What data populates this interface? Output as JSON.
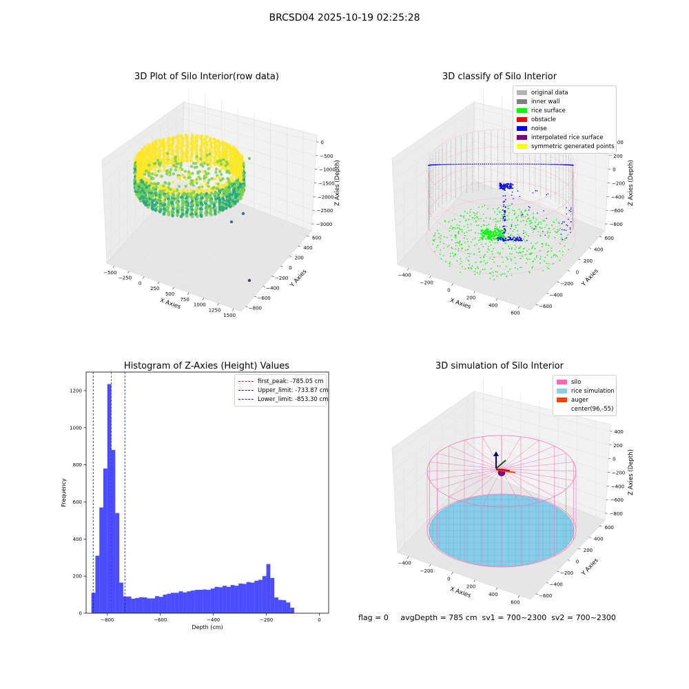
{
  "figure": {
    "title": "BRCSD04 2025-10-19 02:25:28",
    "status_text": "flag = 0     avgDepth = 785 cm  sv1 = 700~2300  sv2 = 700~2300"
  },
  "chart_data": [
    {
      "type": "scatter",
      "title": "3D Plot of Silo Interior(row data)",
      "xlabel": "X Axies",
      "ylabel": "Y Axies",
      "zlabel": "Z Axies (Depth)",
      "xticks": [
        "−500",
        "−250",
        "0",
        "250",
        "500",
        "750",
        "1000",
        "1250",
        "1500"
      ],
      "yticks": [
        "−800",
        "−600",
        "−400",
        "−200",
        "0",
        "200",
        "400",
        "600"
      ],
      "zticks": [
        "−3000",
        "−2500",
        "−2000",
        "−1500",
        "−1000",
        "−500",
        "0"
      ],
      "colormap": [
        "#2a788e",
        "#22a884",
        "#7ad151",
        "#fde725"
      ],
      "grid": true
    },
    {
      "type": "scatter",
      "title": "3D classify of Silo Interior",
      "xlabel": "X Axies",
      "ylabel": "Y Axies",
      "zlabel": "Z Axies (Depth)",
      "xticks": [
        "−400",
        "−200",
        "0",
        "200",
        "400",
        "600"
      ],
      "yticks": [
        "−600",
        "−400",
        "−200",
        "0",
        "200",
        "400",
        "600"
      ],
      "zticks": [
        "−800",
        "−600",
        "−400",
        "−200",
        "0",
        "200",
        "400"
      ],
      "legend": [
        {
          "label": "original data",
          "color": "#b3b3b3"
        },
        {
          "label": "inner wall",
          "color": "#808080"
        },
        {
          "label": "rice surface",
          "color": "#00ff00"
        },
        {
          "label": "obstacle",
          "color": "#ff0000"
        },
        {
          "label": "noise",
          "color": "#0000ff"
        },
        {
          "label": "interpolated rice surface",
          "color": "#800080"
        },
        {
          "label": "symmetric generated points",
          "color": "#ffff00"
        }
      ],
      "legend_position": "top-right",
      "grid": true
    },
    {
      "type": "bar",
      "title": "Histogram of Z-Axies (Height) Values",
      "xlabel": "Depth (cm)",
      "ylabel": "Frequency",
      "bin_start": -860,
      "bin_width": 15,
      "values": [
        110,
        310,
        570,
        780,
        1235,
        880,
        540,
        165,
        90,
        90,
        78,
        82,
        86,
        85,
        80,
        80,
        92,
        88,
        100,
        105,
        110,
        110,
        118,
        112,
        118,
        122,
        126,
        126,
        128,
        126,
        133,
        142,
        140,
        148,
        142,
        152,
        148,
        160,
        158,
        168,
        165,
        175,
        180,
        200,
        265,
        190,
        85,
        72,
        70,
        58,
        30
      ],
      "xlim": [
        -880,
        35
      ],
      "ylim": [
        0,
        1300
      ],
      "xticks": [
        -800,
        -600,
        -400,
        -200,
        0
      ],
      "xtick_labels": [
        "−800",
        "−600",
        "−400",
        "−200",
        "0"
      ],
      "yticks": [
        0,
        200,
        400,
        600,
        800,
        1000,
        1200
      ],
      "bar_color": "#0000ff",
      "vlines": [
        {
          "label": "first_peak: -785.05 cm",
          "x": -785.05,
          "color": "#ff0000"
        },
        {
          "label": "Upper_limit: -733.87 cm",
          "x": -733.87,
          "color": "#0000ff"
        },
        {
          "label": "Lower_limit: -853.30 cm",
          "x": -853.3,
          "color": "#0000ff"
        }
      ],
      "legend_position": "top-right"
    },
    {
      "type": "scatter",
      "title": "3D simulation of Silo Interior",
      "xlabel": "X Axies",
      "ylabel": "Y Axies",
      "zlabel": "Z Axies (Depth)",
      "xticks": [
        "−400",
        "−200",
        "0",
        "200",
        "400",
        "600"
      ],
      "yticks": [
        "−600",
        "−400",
        "−200",
        "0",
        "200",
        "400",
        "600"
      ],
      "zticks": [
        "−800",
        "−600",
        "−400",
        "−200",
        "0",
        "200",
        "400"
      ],
      "legend": [
        {
          "label": "silo",
          "color": "#ff69b4"
        },
        {
          "label": "rice simulation",
          "color": "#87ceeb"
        },
        {
          "label": "auger",
          "color": "#ff4500"
        },
        {
          "label": "center(96,-55)",
          "color": ""
        }
      ],
      "legend_position": "top-right",
      "grid": true
    }
  ]
}
